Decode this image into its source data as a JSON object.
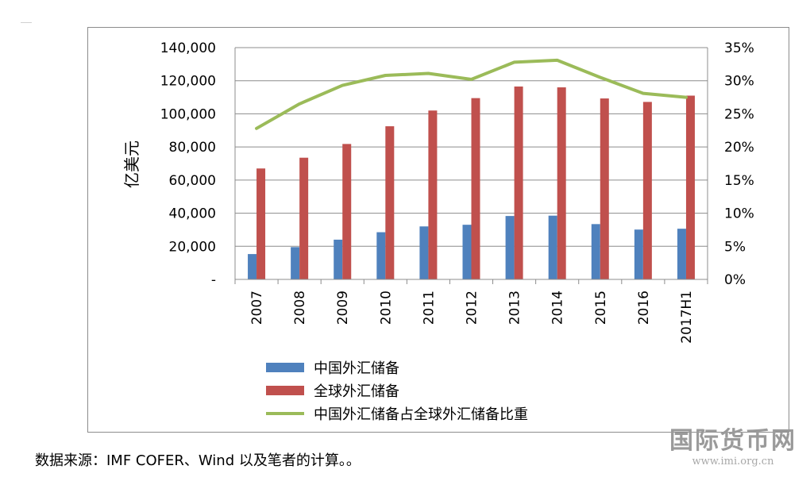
{
  "chart_data": {
    "type": "bar",
    "categories": [
      "2007",
      "2008",
      "2009",
      "2010",
      "2011",
      "2012",
      "2013",
      "2014",
      "2015",
      "2016",
      "2017H1"
    ],
    "ylabel": "亿美元",
    "ylim": [
      0,
      140000
    ],
    "y_ticks": [
      0,
      20000,
      40000,
      60000,
      80000,
      100000,
      120000,
      140000
    ],
    "y_tick_labels": [
      "-",
      "20,000",
      "40,000",
      "60,000",
      "80,000",
      "100,000",
      "120,000",
      "140,000"
    ],
    "y2lim": [
      0,
      0.35
    ],
    "y2_ticks": [
      0,
      0.05,
      0.1,
      0.15,
      0.2,
      0.25,
      0.3,
      0.35
    ],
    "y2_tick_labels": [
      "0%",
      "5%",
      "10%",
      "15%",
      "20%",
      "25%",
      "30%",
      "35%"
    ],
    "grid": true,
    "legend_position": "bottom",
    "series": [
      {
        "name": "中国外汇储备",
        "type": "bar",
        "axis": "left",
        "color": "#4f81bd",
        "values": [
          15300,
          19500,
          24000,
          28500,
          32000,
          33000,
          38300,
          38500,
          33400,
          30100,
          30600
        ]
      },
      {
        "name": "全球外汇储备",
        "type": "bar",
        "axis": "left",
        "color": "#c0504d",
        "values": [
          67000,
          73500,
          81800,
          92500,
          102000,
          109500,
          116500,
          116000,
          109300,
          107200,
          111000
        ]
      },
      {
        "name": "中国外汇储备占全球外汇储备比重",
        "type": "line",
        "axis": "right",
        "color": "#9bbb59",
        "values": [
          0.228,
          0.265,
          0.293,
          0.308,
          0.311,
          0.302,
          0.328,
          0.331,
          0.305,
          0.281,
          0.275
        ]
      }
    ]
  },
  "source_note": "数据来源：IMF COFER、Wind 以及笔者的计算。。",
  "watermark": {
    "name": "国际货币网",
    "url": "www.imi.org.cn"
  }
}
